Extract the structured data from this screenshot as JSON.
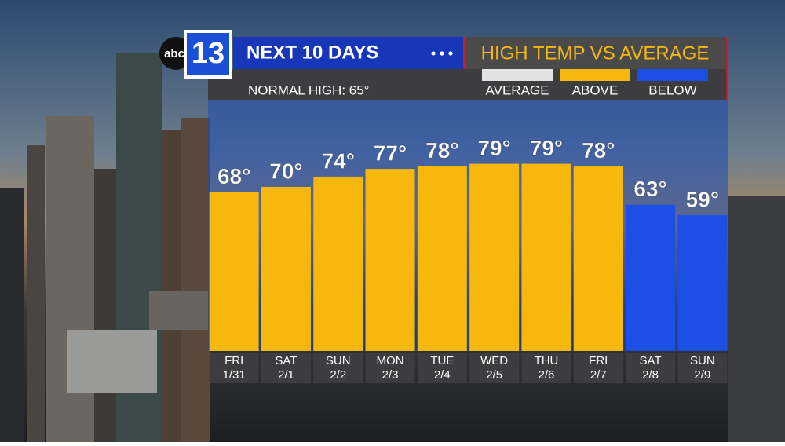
{
  "chart_data": {
    "type": "bar",
    "logo": {
      "network": "abc",
      "channel": "13"
    },
    "title": "NEXT 10 DAYS",
    "subtitle": "HIGH TEMP VS AVERAGE",
    "note": "NORMAL HIGH: 65°",
    "legend": [
      {
        "name": "AVERAGE",
        "color": "#e2e2e2"
      },
      {
        "name": "ABOVE",
        "color": "#f6b80c"
      },
      {
        "name": "BELOW",
        "color": "#1c4fe6"
      }
    ],
    "categories": [
      "FRI",
      "SAT",
      "SUN",
      "MON",
      "TUE",
      "WED",
      "THU",
      "FRI",
      "SAT",
      "SUN"
    ],
    "dates": [
      "1/31",
      "2/1",
      "2/2",
      "2/3",
      "2/4",
      "2/5",
      "2/6",
      "2/7",
      "2/8",
      "2/9"
    ],
    "values": [
      68,
      70,
      74,
      77,
      78,
      79,
      79,
      78,
      63,
      59
    ],
    "value_labels": [
      "68°",
      "70°",
      "74°",
      "77°",
      "78°",
      "79°",
      "79°",
      "78°",
      "63°",
      "59°"
    ],
    "colors": [
      "#f6b80c",
      "#f6b80c",
      "#f6b80c",
      "#f6b80c",
      "#f6b80c",
      "#f6b80c",
      "#f6b80c",
      "#f6b80c",
      "#1c4fe6",
      "#1c4fe6"
    ],
    "ylim": [
      6,
      100
    ]
  }
}
